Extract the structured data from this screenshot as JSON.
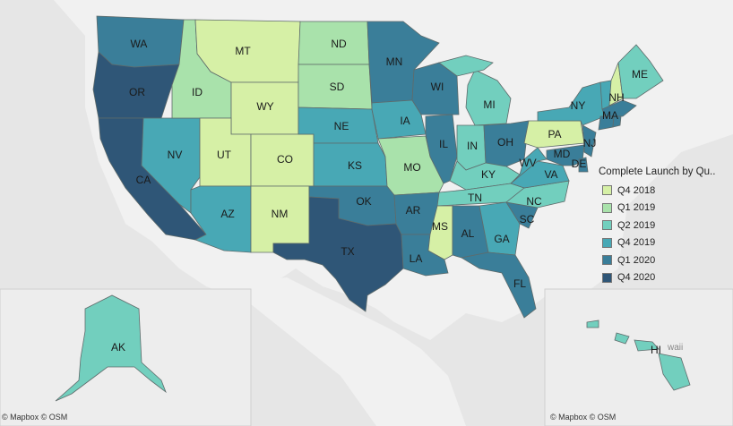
{
  "legend": {
    "title": "Complete Launch by Qu..",
    "items": [
      {
        "label": "Q4 2018",
        "color": "#d6f0a6"
      },
      {
        "label": "Q1 2019",
        "color": "#a9e2ab"
      },
      {
        "label": "Q2 2019",
        "color": "#72cfbe"
      },
      {
        "label": "Q4 2019",
        "color": "#48a8b5"
      },
      {
        "label": "Q1 2020",
        "color": "#3a7e99"
      },
      {
        "label": "Q4 2020",
        "color": "#2f5677"
      }
    ]
  },
  "states": {
    "WA": {
      "label": "WA",
      "quarter": "Q1 2020"
    },
    "OR": {
      "label": "OR",
      "quarter": "Q4 2020"
    },
    "CA": {
      "label": "CA",
      "quarter": "Q4 2020"
    },
    "NV": {
      "label": "NV",
      "quarter": "Q4 2019"
    },
    "ID": {
      "label": "ID",
      "quarter": "Q1 2019"
    },
    "MT": {
      "label": "MT",
      "quarter": "Q4 2018"
    },
    "WY": {
      "label": "WY",
      "quarter": "Q4 2018"
    },
    "UT": {
      "label": "UT",
      "quarter": "Q4 2018"
    },
    "CO": {
      "label": "CO",
      "quarter": "Q4 2018"
    },
    "AZ": {
      "label": "AZ",
      "quarter": "Q4 2019"
    },
    "NM": {
      "label": "NM",
      "quarter": "Q4 2018"
    },
    "ND": {
      "label": "ND",
      "quarter": "Q1 2019"
    },
    "SD": {
      "label": "SD",
      "quarter": "Q1 2019"
    },
    "NE": {
      "label": "NE",
      "quarter": "Q4 2019"
    },
    "KS": {
      "label": "KS",
      "quarter": "Q4 2019"
    },
    "OK": {
      "label": "OK",
      "quarter": "Q1 2020"
    },
    "TX": {
      "label": "TX",
      "quarter": "Q4 2020"
    },
    "MN": {
      "label": "MN",
      "quarter": "Q1 2020"
    },
    "IA": {
      "label": "IA",
      "quarter": "Q4 2019"
    },
    "MO": {
      "label": "MO",
      "quarter": "Q1 2019"
    },
    "AR": {
      "label": "AR",
      "quarter": "Q1 2020"
    },
    "LA": {
      "label": "LA",
      "quarter": "Q1 2020"
    },
    "WI": {
      "label": "WI",
      "quarter": "Q1 2020"
    },
    "IL": {
      "label": "IL",
      "quarter": "Q1 2020"
    },
    "MI": {
      "label": "MI",
      "quarter": "Q2 2019"
    },
    "IN": {
      "label": "IN",
      "quarter": "Q2 2019"
    },
    "OH": {
      "label": "OH",
      "quarter": "Q1 2020"
    },
    "KY": {
      "label": "KY",
      "quarter": "Q2 2019"
    },
    "TN": {
      "label": "TN",
      "quarter": "Q2 2019"
    },
    "MS": {
      "label": "MS",
      "quarter": "Q4 2018"
    },
    "AL": {
      "label": "AL",
      "quarter": "Q1 2020"
    },
    "GA": {
      "label": "GA",
      "quarter": "Q4 2019"
    },
    "FL": {
      "label": "FL",
      "quarter": "Q1 2020"
    },
    "SC": {
      "label": "SC",
      "quarter": "Q1 2020"
    },
    "NC": {
      "label": "NC",
      "quarter": "Q2 2019"
    },
    "VA": {
      "label": "VA",
      "quarter": "Q4 2019"
    },
    "WV": {
      "label": "WV",
      "quarter": "Q4 2019"
    },
    "PA": {
      "label": "PA",
      "quarter": "Q4 2018"
    },
    "NY": {
      "label": "NY",
      "quarter": "Q4 2019"
    },
    "NJ": {
      "label": "NJ",
      "quarter": "Q1 2020"
    },
    "MD": {
      "label": "MD",
      "quarter": "Q1 2020"
    },
    "DE": {
      "label": "DE",
      "quarter": "Q1 2020"
    },
    "VT": {
      "label": "",
      "quarter": "Q4 2019"
    },
    "NH": {
      "label": "NH",
      "quarter": "Q4 2018"
    },
    "ME": {
      "label": "ME",
      "quarter": "Q2 2019"
    },
    "MA": {
      "label": "MA",
      "quarter": "Q1 2020"
    },
    "CT": {
      "label": "",
      "quarter": "Q1 2020"
    },
    "RI": {
      "label": "",
      "quarter": "Q1 2020"
    },
    "AK": {
      "label": "AK",
      "quarter": "Q2 2019"
    },
    "HI": {
      "label": "HI",
      "quarter": "Q2 2019"
    }
  },
  "attribution": {
    "main": "© Mapbox © OSM",
    "hawaii_inset": "© Mapbox © OSM",
    "hawaii_place": "waii"
  }
}
